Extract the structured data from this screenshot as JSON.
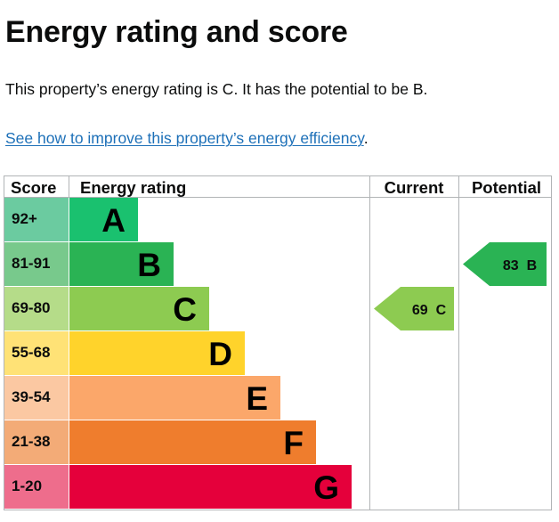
{
  "page": {
    "title": "Energy rating and score",
    "summary": "This property’s energy rating is C. It has the potential to be B.",
    "improve_link": "See how to improve this property’s energy efficiency",
    "improve_suffix": "."
  },
  "chart_data": {
    "type": "bar",
    "headers": {
      "score": "Score",
      "rating": "Energy rating",
      "current": "Current",
      "potential": "Potential"
    },
    "bands": [
      {
        "letter": "A",
        "range": "92+",
        "color": "#1ac16f",
        "score_color": "#6bcba0"
      },
      {
        "letter": "B",
        "range": "81-91",
        "color": "#2ab354",
        "score_color": "#78c98c"
      },
      {
        "letter": "C",
        "range": "69-80",
        "color": "#8dcb51",
        "score_color": "#b5dc89"
      },
      {
        "letter": "D",
        "range": "55-68",
        "color": "#ffd32b",
        "score_color": "#ffe276"
      },
      {
        "letter": "E",
        "range": "39-54",
        "color": "#fba76a",
        "score_color": "#fbc8a2"
      },
      {
        "letter": "F",
        "range": "21-38",
        "color": "#ef7d2d",
        "score_color": "#f3ab77"
      },
      {
        "letter": "G",
        "range": "1-20",
        "color": "#e5003b",
        "score_color": "#ee6d8c"
      }
    ],
    "current": {
      "score": 69,
      "letter": "C",
      "label": "69  C",
      "color": "#8dcb51"
    },
    "potential": {
      "score": 83,
      "letter": "B",
      "label": "83  B",
      "color": "#2ab354"
    }
  }
}
